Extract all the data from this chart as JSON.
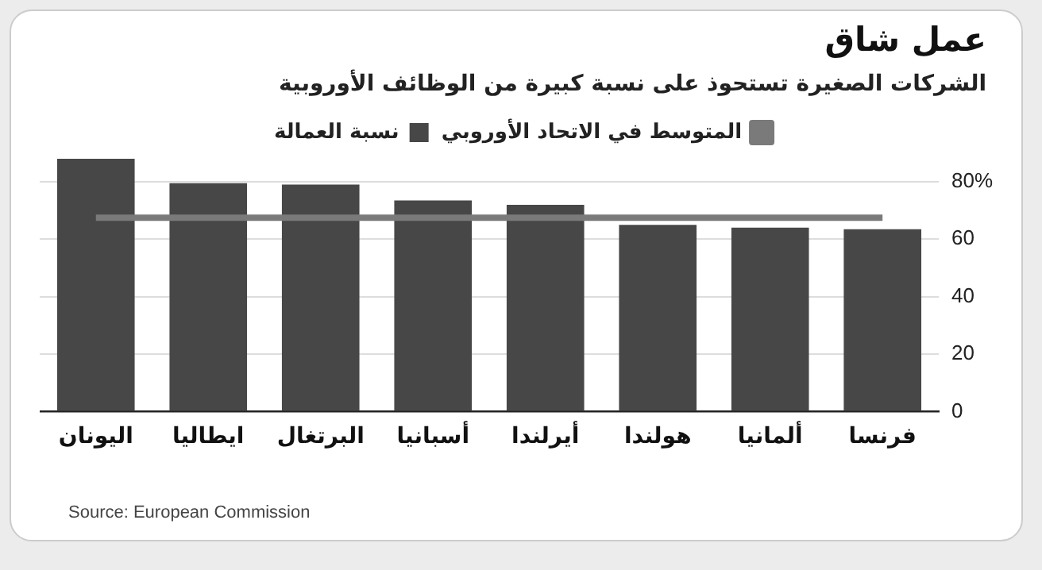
{
  "chart_data": {
    "type": "bar",
    "title": "عمل شاق",
    "subtitle": "الشركات الصغيرة تستحوذ على نسبة كبيرة من الوظائف الأوروبية",
    "categories": [
      "اليونان",
      "ايطاليا",
      "البرتغال",
      "أسبانيا",
      "أيرلندا",
      "هولندا",
      "ألمانيا",
      "فرنسا"
    ],
    "series": [
      {
        "name": "نسبة العمالة",
        "color": "#474747",
        "values": [
          88,
          79.5,
          79,
          73.5,
          72,
          65,
          64,
          63.5
        ]
      },
      {
        "name": "المتوسط في الاتحاد الأوروبي",
        "type": "line",
        "color": "#7a7a7a",
        "values": [
          67.5,
          67.5,
          67.5,
          67.5,
          67.5,
          67.5,
          67.5,
          67.5
        ]
      }
    ],
    "ylim": [
      0,
      88
    ],
    "yticks": [
      0,
      20,
      40,
      60,
      {
        "value": 80,
        "label": "80%"
      }
    ],
    "grid": "y",
    "legend": "top",
    "marker": "none",
    "annotations": [
      "Source: European Commission"
    ]
  }
}
